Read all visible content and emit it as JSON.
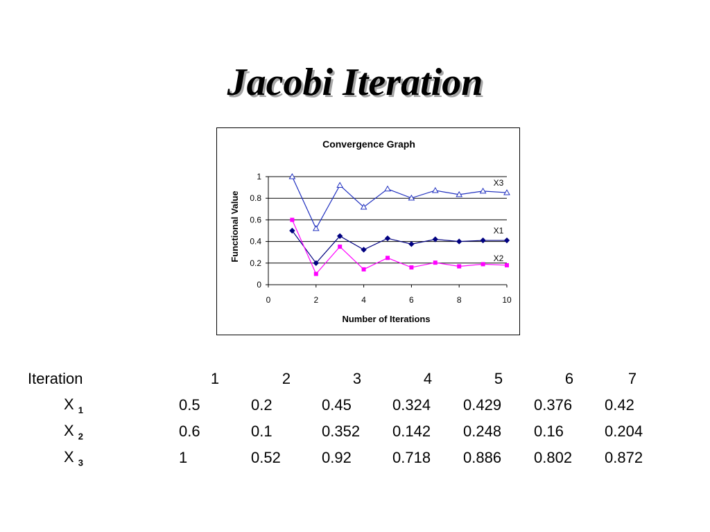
{
  "title": "Jacobi Iteration",
  "chart_data": {
    "type": "line",
    "title": "Convergence Graph",
    "xlabel": "Number of Iterations",
    "ylabel": "Functional Value",
    "xlim": [
      0,
      10
    ],
    "ylim": [
      0,
      1
    ],
    "xticks": [
      0,
      2,
      4,
      6,
      8,
      10
    ],
    "yticks": [
      0,
      0.2,
      0.4,
      0.6,
      0.8,
      1
    ],
    "grid": "horizontal",
    "series": [
      {
        "name": "X3",
        "color": "#1f2fbf",
        "marker": "triangle",
        "x": [
          1,
          2,
          3,
          4,
          5,
          6,
          7,
          8,
          9,
          10
        ],
        "values": [
          1,
          0.52,
          0.92,
          0.718,
          0.886,
          0.802,
          0.872,
          0.834,
          0.866,
          0.852
        ]
      },
      {
        "name": "X1",
        "color": "#000080",
        "marker": "diamond",
        "x": [
          1,
          2,
          3,
          4,
          5,
          6,
          7,
          8,
          9,
          10
        ],
        "values": [
          0.5,
          0.2,
          0.45,
          0.324,
          0.429,
          0.376,
          0.42,
          0.4,
          0.41,
          0.41
        ]
      },
      {
        "name": "X2",
        "color": "#ff00ff",
        "marker": "square",
        "x": [
          1,
          2,
          3,
          4,
          5,
          6,
          7,
          8,
          9,
          10
        ],
        "values": [
          0.6,
          0.1,
          0.352,
          0.142,
          0.248,
          0.16,
          0.204,
          0.17,
          0.19,
          0.18
        ]
      }
    ]
  },
  "table": {
    "header_label": "Iteration",
    "columns": [
      "1",
      "2",
      "3",
      "4",
      "5",
      "6",
      "7"
    ],
    "rows": [
      {
        "name": "X",
        "sub": "1",
        "values": [
          "0.5",
          "0.2",
          "0.45",
          "0.324",
          "0.429",
          "0.376",
          "0.42"
        ]
      },
      {
        "name": "X",
        "sub": "2",
        "values": [
          "0.6",
          "0.1",
          "0.352",
          "0.142",
          "0.248",
          "0.16",
          "0.204"
        ]
      },
      {
        "name": "X",
        "sub": "3",
        "values": [
          "1",
          "0.52",
          "0.92",
          "0.718",
          "0.886",
          "0.802",
          "0.872"
        ]
      }
    ]
  }
}
